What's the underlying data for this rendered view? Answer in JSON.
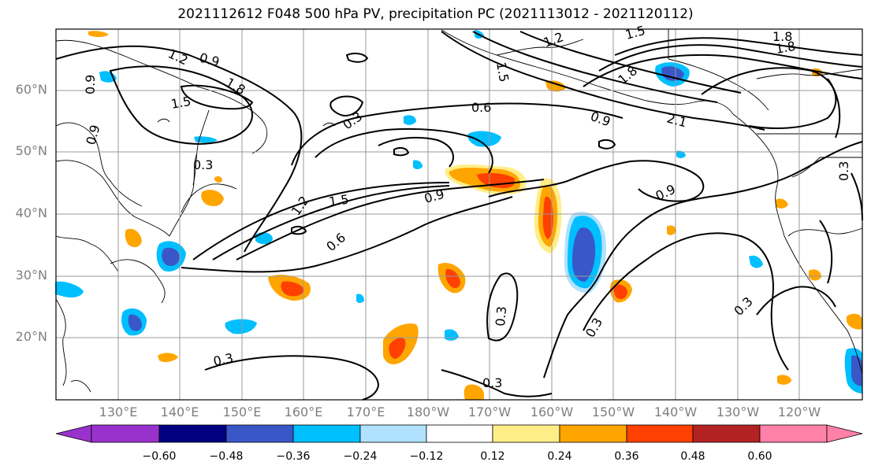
{
  "title": "2021112612 F048 500 hPa PV, precipitation PC (2021113012 - 2021120112)",
  "map": {
    "lat_ticks": [
      "60°N",
      "50°N",
      "40°N",
      "30°N",
      "20°N"
    ],
    "lon_ticks": [
      "130°E",
      "140°E",
      "150°E",
      "160°E",
      "170°E",
      "180°W",
      "170°W",
      "160°W",
      "150°W",
      "140°W",
      "130°W",
      "120°W"
    ],
    "contour_labels": [
      "1.2",
      "0.9",
      "1.5",
      "1.8",
      "0.9",
      "0.9",
      "0.3",
      "0.3",
      "0.6",
      "1.2",
      "1.5",
      "1.8",
      "1.8",
      "1.5",
      "1.8",
      "2.1",
      "0.9",
      "1.5",
      "0.9",
      "1.2",
      "0.6",
      "0.9",
      "0.3",
      "0.3",
      "0.3",
      "0.3",
      "0.3",
      "0.3"
    ],
    "colors": {
      "land_outline": "#000000",
      "contour": "#000000",
      "grid": "#9a9a9a",
      "neg_strong": "#3a57c8",
      "neg": "#00bfff",
      "neg_weak": "#b0e2ff",
      "pos_weak": "#ffee88",
      "pos": "#ffa500",
      "pos_strong": "#ff4000",
      "pos_max": "#b22222"
    }
  },
  "colorbar": {
    "ticks": [
      "−0.60",
      "−0.48",
      "−0.36",
      "−0.24",
      "−0.12",
      "0.12",
      "0.24",
      "0.36",
      "0.48",
      "0.60"
    ],
    "colors": [
      "#9932cc",
      "#000080",
      "#3a57c8",
      "#00bfff",
      "#b0e2ff",
      "#ffffff",
      "#ffee88",
      "#ffa500",
      "#ff4000",
      "#b22222",
      "#ff80a8"
    ]
  }
}
